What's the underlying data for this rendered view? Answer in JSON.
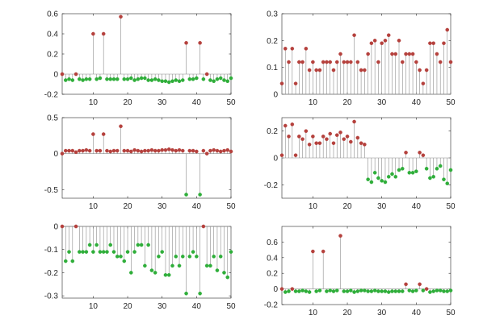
{
  "colors": {
    "positive_marker": "#b5413d",
    "negative_marker": "#2fae3a",
    "stem": "#8c8c8c",
    "axis": "#262626"
  },
  "chart_data": [
    {
      "type": "stem",
      "xlim": [
        1,
        50
      ],
      "ylim": [
        -0.2,
        0.6
      ],
      "xticks": [
        10,
        20,
        30,
        40,
        50
      ],
      "yticks": [
        -0.2,
        0,
        0.2,
        0.4,
        0.6
      ],
      "ytick_labels": [
        "-0.2",
        "0",
        "0.2",
        "0.4",
        "0.6"
      ],
      "x": [
        1,
        2,
        3,
        4,
        5,
        6,
        7,
        8,
        9,
        10,
        11,
        12,
        13,
        14,
        15,
        16,
        17,
        18,
        19,
        20,
        21,
        22,
        23,
        24,
        25,
        26,
        27,
        28,
        29,
        30,
        31,
        32,
        33,
        34,
        35,
        36,
        37,
        38,
        39,
        40,
        41,
        42,
        43,
        44,
        45,
        46,
        47,
        48,
        49,
        50
      ],
      "y": [
        0.0,
        -0.06,
        -0.05,
        -0.06,
        0.0,
        -0.05,
        -0.06,
        -0.05,
        -0.05,
        0.4,
        -0.05,
        -0.04,
        0.4,
        -0.05,
        -0.05,
        -0.05,
        -0.05,
        0.57,
        -0.05,
        -0.05,
        -0.04,
        -0.06,
        -0.05,
        -0.04,
        -0.04,
        -0.06,
        -0.06,
        -0.05,
        -0.06,
        -0.07,
        -0.07,
        -0.08,
        -0.07,
        -0.06,
        -0.07,
        -0.06,
        0.31,
        -0.05,
        -0.05,
        -0.04,
        0.31,
        -0.05,
        0.0,
        -0.06,
        -0.07,
        -0.05,
        -0.04,
        -0.06,
        -0.07,
        -0.04
      ]
    },
    {
      "type": "stem",
      "xlim": [
        1,
        50
      ],
      "ylim": [
        0,
        0.3
      ],
      "xticks": [
        10,
        20,
        30,
        40,
        50
      ],
      "yticks": [
        0,
        0.1,
        0.2,
        0.3
      ],
      "ytick_labels": [
        "0",
        "0.1",
        "0.2",
        "0.3"
      ],
      "x": [
        1,
        2,
        3,
        4,
        5,
        6,
        7,
        8,
        9,
        10,
        11,
        12,
        13,
        14,
        15,
        16,
        17,
        18,
        19,
        20,
        21,
        22,
        23,
        24,
        25,
        26,
        27,
        28,
        29,
        30,
        31,
        32,
        33,
        34,
        35,
        36,
        37,
        38,
        39,
        40,
        41,
        42,
        43,
        44,
        45,
        46,
        47,
        48,
        49,
        50
      ],
      "y": [
        0.04,
        0.17,
        0.12,
        0.17,
        0.04,
        0.12,
        0.12,
        0.17,
        0.09,
        0.12,
        0.09,
        0.09,
        0.12,
        0.12,
        0.12,
        0.09,
        0.12,
        0.15,
        0.12,
        0.12,
        0.12,
        0.22,
        0.12,
        0.09,
        0.09,
        0.15,
        0.19,
        0.2,
        0.12,
        0.19,
        0.2,
        0.22,
        0.15,
        0.15,
        0.2,
        0.12,
        0.15,
        0.15,
        0.15,
        0.12,
        0.09,
        0.04,
        0.09,
        0.19,
        0.19,
        0.15,
        0.12,
        0.19,
        0.24,
        0.12
      ]
    },
    {
      "type": "stem",
      "xlim": [
        1,
        50
      ],
      "ylim": [
        -0.62,
        0.5
      ],
      "xticks": [
        10,
        20,
        30,
        40,
        50
      ],
      "yticks": [
        -0.5,
        0,
        0.5
      ],
      "ytick_labels": [
        "-0.5",
        "0",
        "0.5"
      ],
      "x": [
        1,
        2,
        3,
        4,
        5,
        6,
        7,
        8,
        9,
        10,
        11,
        12,
        13,
        14,
        15,
        16,
        17,
        18,
        19,
        20,
        21,
        22,
        23,
        24,
        25,
        26,
        27,
        28,
        29,
        30,
        31,
        32,
        33,
        34,
        35,
        36,
        37,
        38,
        39,
        40,
        41,
        42,
        43,
        44,
        45,
        46,
        47,
        48,
        49,
        50
      ],
      "y": [
        0.0,
        0.04,
        0.04,
        0.04,
        0.02,
        0.04,
        0.04,
        0.05,
        0.04,
        0.27,
        0.04,
        0.04,
        0.27,
        0.04,
        0.03,
        0.04,
        0.04,
        0.38,
        0.04,
        0.04,
        0.03,
        0.05,
        0.04,
        0.03,
        0.04,
        0.04,
        0.05,
        0.04,
        0.04,
        0.05,
        0.05,
        0.06,
        0.05,
        0.04,
        0.05,
        0.04,
        -0.57,
        0.04,
        0.04,
        0.03,
        -0.57,
        0.04,
        0.0,
        0.04,
        0.05,
        0.04,
        0.03,
        0.04,
        0.05,
        0.03
      ]
    },
    {
      "type": "stem",
      "xlim": [
        1,
        50
      ],
      "ylim": [
        -0.3,
        0.3
      ],
      "xticks": [
        10,
        20,
        30,
        40,
        50
      ],
      "yticks": [
        -0.2,
        0,
        0.2
      ],
      "ytick_labels": [
        "-0.2",
        "0",
        "0.2"
      ],
      "x": [
        1,
        2,
        3,
        4,
        5,
        6,
        7,
        8,
        9,
        10,
        11,
        12,
        13,
        14,
        15,
        16,
        17,
        18,
        19,
        20,
        21,
        22,
        23,
        24,
        25,
        26,
        27,
        28,
        29,
        30,
        31,
        32,
        33,
        34,
        35,
        36,
        37,
        38,
        39,
        40,
        41,
        42,
        43,
        44,
        45,
        46,
        47,
        48,
        49,
        50
      ],
      "y": [
        0.02,
        0.24,
        0.16,
        0.25,
        0.02,
        0.16,
        0.14,
        0.2,
        0.1,
        0.16,
        0.11,
        0.11,
        0.16,
        0.14,
        0.18,
        0.11,
        0.17,
        0.19,
        0.14,
        0.16,
        0.12,
        0.27,
        0.15,
        0.11,
        0.1,
        -0.16,
        -0.18,
        -0.11,
        -0.15,
        -0.17,
        -0.18,
        -0.14,
        -0.12,
        -0.14,
        -0.09,
        -0.08,
        0.04,
        -0.11,
        -0.11,
        -0.1,
        0.04,
        0.02,
        -0.08,
        -0.15,
        -0.14,
        -0.08,
        -0.06,
        -0.16,
        -0.19,
        -0.09
      ]
    },
    {
      "type": "stem",
      "xlim": [
        1,
        50
      ],
      "ylim": [
        -0.31,
        0.0
      ],
      "xticks": [
        10,
        20,
        30,
        40,
        50
      ],
      "yticks": [
        -0.3,
        -0.2,
        -0.1,
        0
      ],
      "ytick_labels": [
        "-0.3",
        "-0.2",
        "-0.1",
        "0"
      ],
      "x": [
        1,
        2,
        3,
        4,
        5,
        6,
        7,
        8,
        9,
        10,
        11,
        12,
        13,
        14,
        15,
        16,
        17,
        18,
        19,
        20,
        21,
        22,
        23,
        24,
        25,
        26,
        27,
        28,
        29,
        30,
        31,
        32,
        33,
        34,
        35,
        36,
        37,
        38,
        39,
        40,
        41,
        42,
        43,
        44,
        45,
        46,
        47,
        48,
        49,
        50
      ],
      "y": [
        0.0,
        -0.15,
        -0.11,
        -0.15,
        0.0,
        -0.11,
        -0.11,
        -0.11,
        -0.08,
        -0.11,
        -0.08,
        -0.11,
        -0.11,
        -0.11,
        -0.08,
        -0.11,
        -0.13,
        -0.13,
        -0.15,
        -0.11,
        -0.2,
        -0.11,
        -0.08,
        -0.08,
        -0.17,
        -0.08,
        -0.19,
        -0.2,
        -0.13,
        -0.11,
        -0.21,
        -0.21,
        -0.17,
        -0.13,
        -0.17,
        -0.13,
        -0.29,
        -0.13,
        -0.11,
        -0.13,
        -0.29,
        0.0,
        -0.17,
        -0.17,
        -0.13,
        -0.19,
        -0.13,
        -0.2,
        -0.22,
        -0.11
      ]
    },
    {
      "type": "stem",
      "xlim": [
        1,
        50
      ],
      "ylim": [
        -0.2,
        0.8
      ],
      "xticks": [
        10,
        20,
        30,
        40,
        50
      ],
      "yticks": [
        -0.2,
        0,
        0.2,
        0.4,
        0.6
      ],
      "ytick_labels": [
        "-0.2",
        "0",
        "0.2",
        "0.4",
        "0.6"
      ],
      "x": [
        1,
        2,
        3,
        4,
        5,
        6,
        7,
        8,
        9,
        10,
        11,
        12,
        13,
        14,
        15,
        16,
        17,
        18,
        19,
        20,
        21,
        22,
        23,
        24,
        25,
        26,
        27,
        28,
        29,
        30,
        31,
        32,
        33,
        34,
        35,
        36,
        37,
        38,
        39,
        40,
        41,
        42,
        43,
        44,
        45,
        46,
        47,
        48,
        49,
        50
      ],
      "y": [
        0.0,
        -0.04,
        -0.03,
        0.0,
        -0.03,
        -0.03,
        -0.02,
        -0.03,
        -0.04,
        0.48,
        -0.03,
        -0.02,
        0.48,
        -0.03,
        -0.02,
        -0.03,
        -0.02,
        0.68,
        -0.03,
        -0.03,
        -0.02,
        -0.04,
        -0.03,
        -0.02,
        -0.02,
        -0.03,
        -0.03,
        -0.02,
        -0.03,
        -0.03,
        -0.03,
        -0.04,
        -0.03,
        -0.03,
        -0.03,
        -0.03,
        0.06,
        -0.02,
        -0.03,
        -0.02,
        0.06,
        -0.02,
        0.0,
        -0.04,
        -0.03,
        -0.02,
        -0.02,
        -0.03,
        -0.03,
        -0.02
      ]
    }
  ]
}
